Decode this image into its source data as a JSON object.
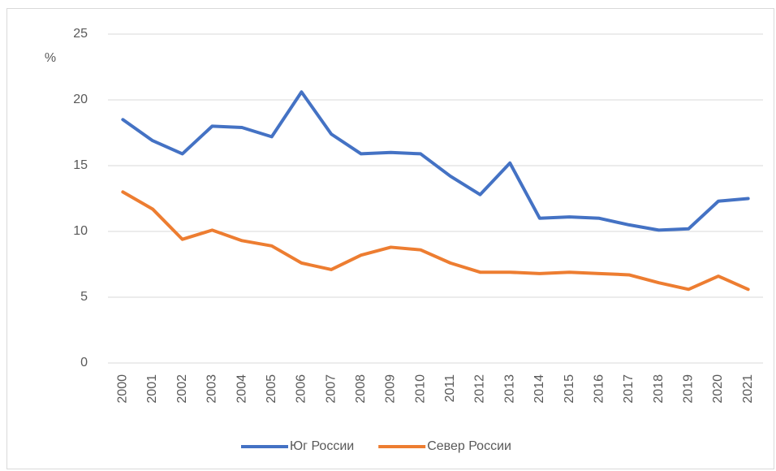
{
  "chart_data": {
    "type": "line",
    "y_label": "%",
    "categories": [
      "2000",
      "2001",
      "2002",
      "2003",
      "2004",
      "2005",
      "2006",
      "2007",
      "2008",
      "2009",
      "2010",
      "2011",
      "2012",
      "2013",
      "2014",
      "2015",
      "2016",
      "2017",
      "2018",
      "2019",
      "2020",
      "2021"
    ],
    "series": [
      {
        "name": "Юг России",
        "color": "#4472c4",
        "values": [
          18.5,
          16.9,
          15.9,
          18.0,
          17.9,
          17.2,
          20.6,
          17.4,
          15.9,
          16.0,
          15.9,
          14.2,
          12.8,
          15.2,
          11.0,
          11.1,
          11.0,
          10.5,
          10.1,
          10.2,
          12.3,
          12.5
        ]
      },
      {
        "name": "Север России",
        "color": "#ed7d31",
        "values": [
          13.0,
          11.7,
          9.4,
          10.1,
          9.3,
          8.9,
          7.6,
          7.1,
          8.2,
          8.8,
          8.6,
          7.6,
          6.9,
          6.9,
          6.8,
          6.9,
          6.8,
          6.7,
          6.1,
          5.6,
          6.6,
          5.6
        ]
      }
    ],
    "ylim": [
      0,
      25
    ],
    "yticks": [
      0,
      5,
      10,
      15,
      20,
      25
    ],
    "grid": true,
    "legend": "bottom"
  }
}
